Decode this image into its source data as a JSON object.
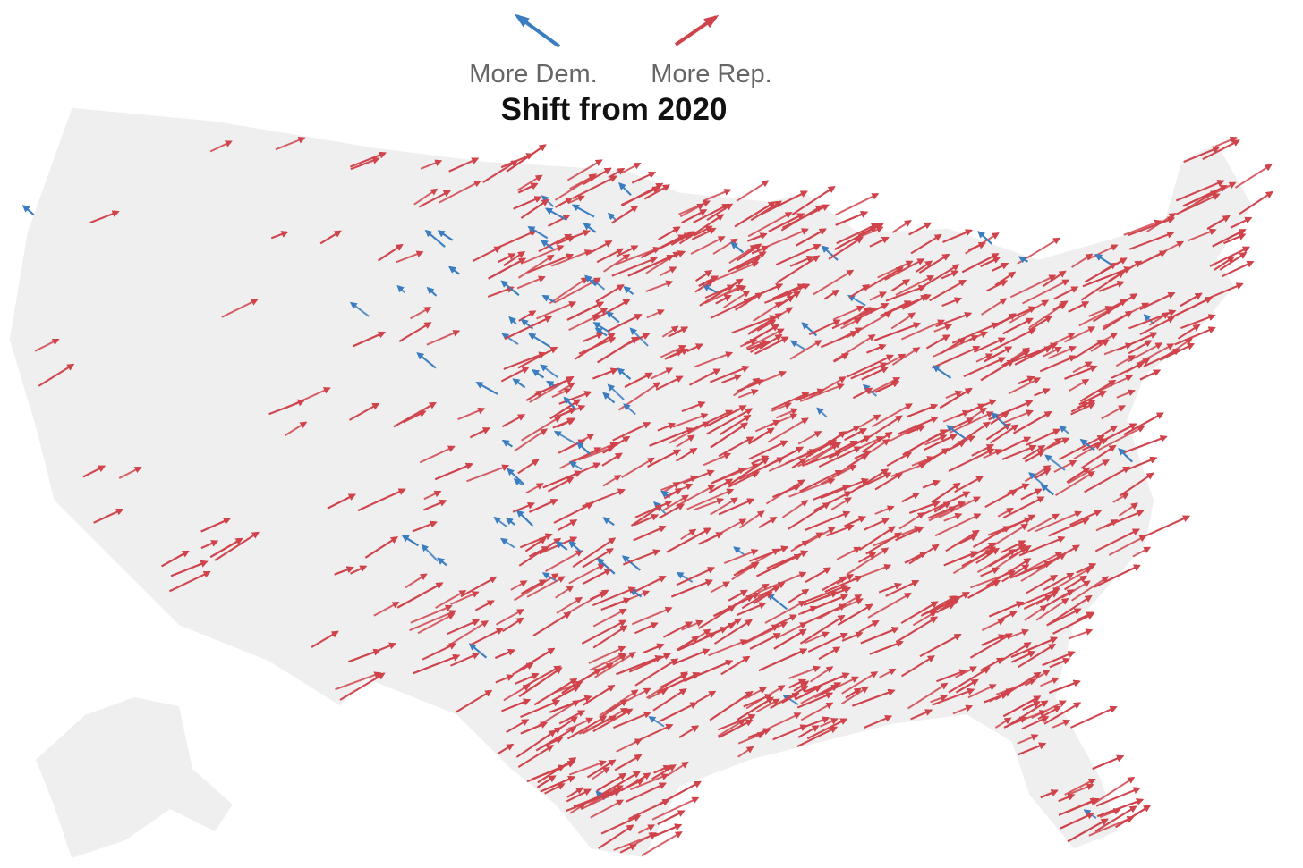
{
  "legend": {
    "dem": {
      "label": "More Dem.",
      "color": "#3a7dc0"
    },
    "rep": {
      "label": "More Rep.",
      "color": "#d0434b"
    }
  },
  "title": "Shift from 2020"
}
